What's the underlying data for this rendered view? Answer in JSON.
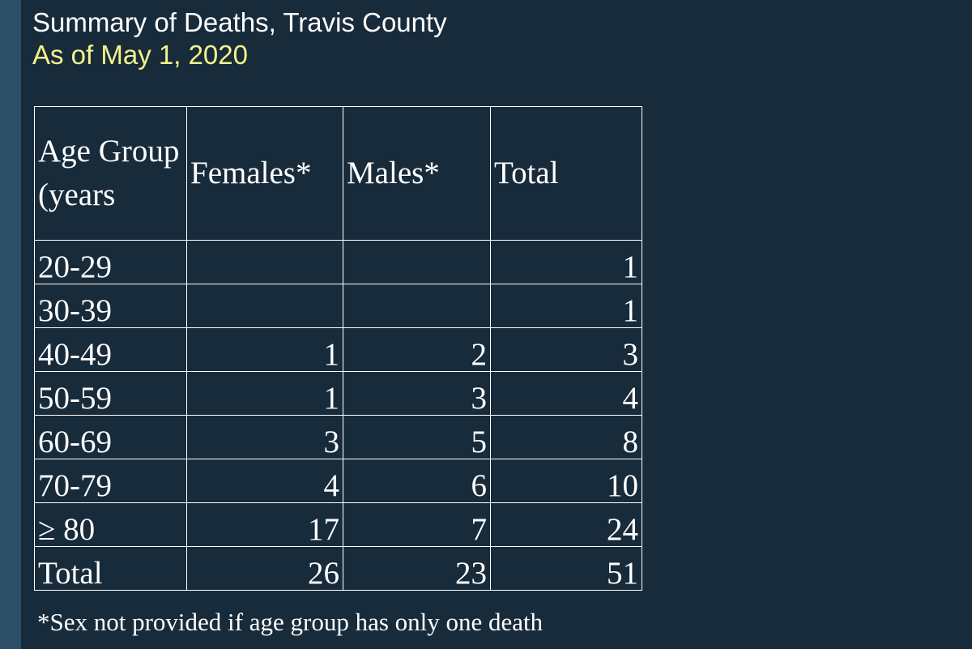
{
  "slide": {
    "title": "Summary of Deaths, Travis County",
    "subtitle": "As of May 1, 2020",
    "footnote": "*Sex not provided if age group has only one death",
    "colors": {
      "background": "#182b3b",
      "left_stripe": "#2c4e66",
      "title_text": "#ffffff",
      "subtitle_text": "#f6f28a",
      "table_text": "#ffffff"
    }
  },
  "table": {
    "headers": [
      "Age Group (years",
      "Females*",
      "Males*",
      "Total"
    ],
    "rows": [
      [
        "20-29",
        "",
        "",
        "1"
      ],
      [
        "30-39",
        "",
        "",
        "1"
      ],
      [
        "40-49",
        "1",
        "2",
        "3"
      ],
      [
        "50-59",
        "1",
        "3",
        "4"
      ],
      [
        "60-69",
        "3",
        "5",
        "8"
      ],
      [
        "70-79",
        "4",
        "6",
        "10"
      ],
      [
        "≥ 80",
        "17",
        "7",
        "24"
      ],
      [
        "Total",
        "26",
        "23",
        "51"
      ]
    ]
  }
}
